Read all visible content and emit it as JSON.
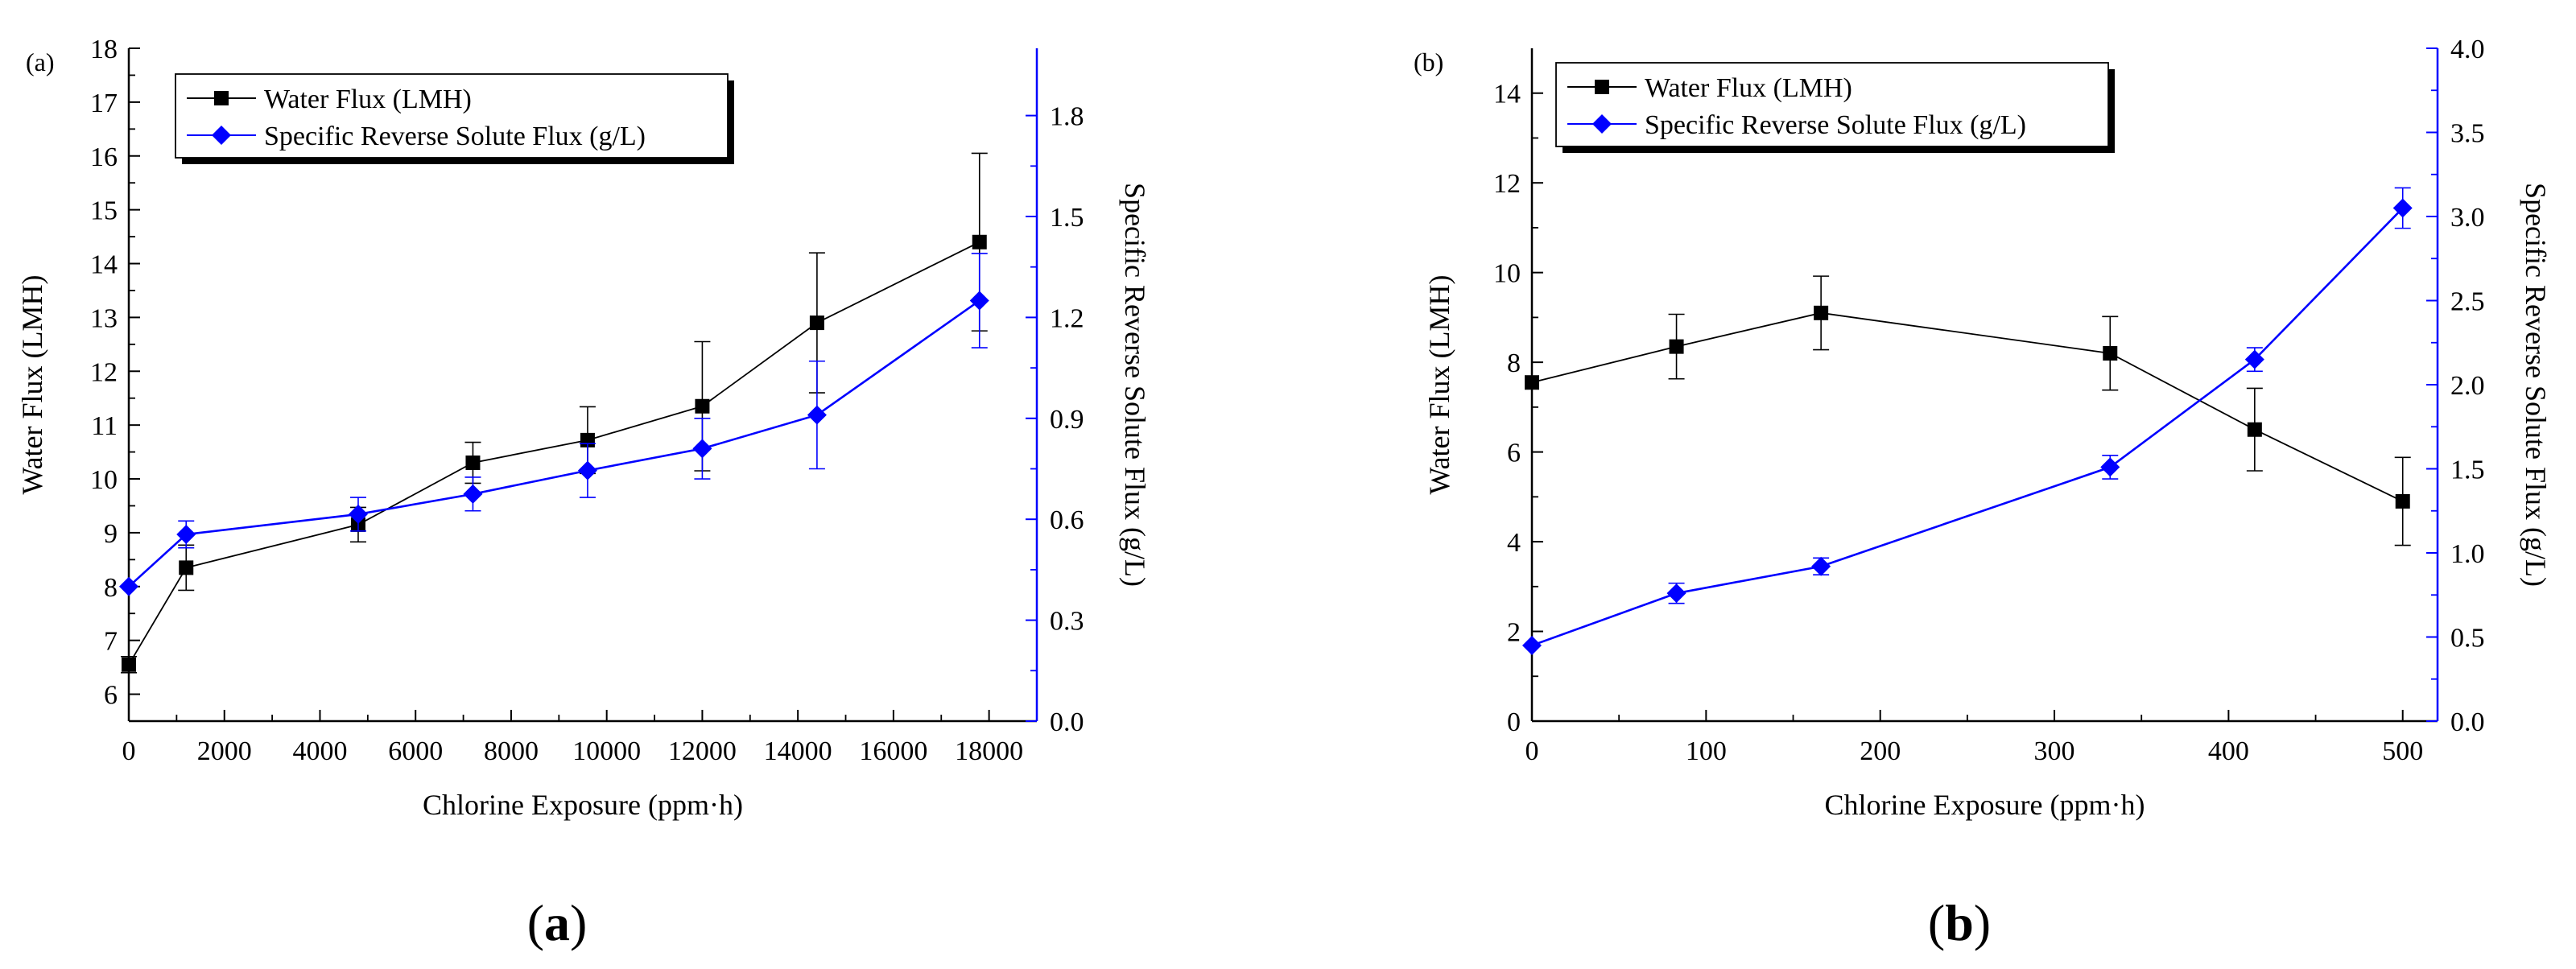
{
  "colors": {
    "water": "#000000",
    "solute": "#0000FF",
    "axis": "#000000"
  },
  "chart_data": [
    {
      "type": "line",
      "panel_tag": "(a)",
      "caption_open": "(",
      "caption_letter": "a",
      "caption_close": ")",
      "xlabel": "Chlorine Exposure (ppm·h)",
      "ylabel": "Water Flux  (LMH)",
      "y2label": "Specific Reverse Solute Flux (g/L)",
      "xlim": [
        0,
        19000
      ],
      "ylim": [
        5.5,
        18
      ],
      "y2lim": [
        0,
        2.0
      ],
      "xticks": [
        0,
        2000,
        4000,
        6000,
        8000,
        10000,
        12000,
        14000,
        16000,
        18000
      ],
      "xtick_labels": [
        "0",
        "2000",
        "4000",
        "6000",
        "8000",
        "10000",
        "12000",
        "14000",
        "16000",
        "18000"
      ],
      "yticks": [
        6,
        7,
        8,
        9,
        10,
        11,
        12,
        13,
        14,
        15,
        16,
        17,
        18
      ],
      "ytick_labels": [
        "6",
        "7",
        "8",
        "9",
        "10",
        "11",
        "12",
        "13",
        "14",
        "15",
        "16",
        "17",
        "18"
      ],
      "y2ticks": [
        0,
        0.3,
        0.6,
        0.9,
        1.2,
        1.5,
        1.8
      ],
      "y2tick_labels": [
        "0.0",
        "0.3",
        "0.6",
        "0.9",
        "1.2",
        "1.5",
        "1.8"
      ],
      "series": [
        {
          "name": "Water Flux  (LMH)",
          "axis": "left",
          "marker": "square",
          "x": [
            0,
            1200,
            4800,
            7200,
            9600,
            12000,
            14400,
            17800
          ],
          "values": [
            6.55,
            8.35,
            9.15,
            10.3,
            10.72,
            11.35,
            12.9,
            14.4
          ],
          "errors": [
            0.15,
            0.42,
            0.32,
            0.38,
            0.62,
            1.2,
            1.3,
            1.65
          ]
        },
        {
          "name": "Specific Reverse Solute Flux (g/L)",
          "axis": "right",
          "marker": "diamond",
          "x": [
            0,
            1200,
            4800,
            7200,
            9600,
            12000,
            14400,
            17800
          ],
          "values": [
            0.4,
            0.555,
            0.615,
            0.675,
            0.745,
            0.81,
            0.91,
            1.25
          ],
          "errors": [
            0.0,
            0.04,
            0.05,
            0.05,
            0.08,
            0.09,
            0.16,
            0.14
          ]
        }
      ]
    },
    {
      "type": "line",
      "panel_tag": "(b)",
      "caption_open": "(",
      "caption_letter": "b",
      "caption_close": ")",
      "xlabel": "Chlorine Exposure (ppm·h)",
      "ylabel": "Water Flux (LMH)",
      "y2label": "Specific Reverse Solute Flux (g/L)",
      "xlim": [
        0,
        520
      ],
      "ylim": [
        0,
        15
      ],
      "y2lim": [
        0,
        4.0
      ],
      "xticks": [
        0,
        100,
        200,
        300,
        400,
        500
      ],
      "xtick_labels": [
        "0",
        "100",
        "200",
        "300",
        "400",
        "500"
      ],
      "yticks": [
        0,
        2,
        4,
        6,
        8,
        10,
        12,
        14
      ],
      "ytick_labels": [
        "0",
        "2",
        "4",
        "6",
        "8",
        "10",
        "12",
        "14"
      ],
      "y2ticks": [
        0,
        0.5,
        1.0,
        1.5,
        2.0,
        2.5,
        3.0,
        3.5,
        4.0
      ],
      "y2tick_labels": [
        "0.0",
        "0.5",
        "1.0",
        "1.5",
        "2.0",
        "2.5",
        "3.0",
        "3.5",
        "4.0"
      ],
      "series": [
        {
          "name": "Water Flux (LMH)",
          "axis": "left",
          "marker": "square",
          "x": [
            0,
            83,
            166,
            332,
            415,
            500
          ],
          "values": [
            7.55,
            8.35,
            9.1,
            8.2,
            6.5,
            4.9
          ],
          "errors": [
            0.0,
            0.72,
            0.82,
            0.82,
            0.92,
            0.98
          ]
        },
        {
          "name": "Specific Reverse Solute Flux (g/L)",
          "axis": "right",
          "marker": "diamond",
          "x": [
            0,
            83,
            166,
            332,
            415,
            500
          ],
          "values": [
            0.45,
            0.76,
            0.92,
            1.51,
            2.15,
            3.05
          ],
          "errors": [
            0.0,
            0.06,
            0.05,
            0.07,
            0.07,
            0.12
          ]
        }
      ]
    }
  ]
}
